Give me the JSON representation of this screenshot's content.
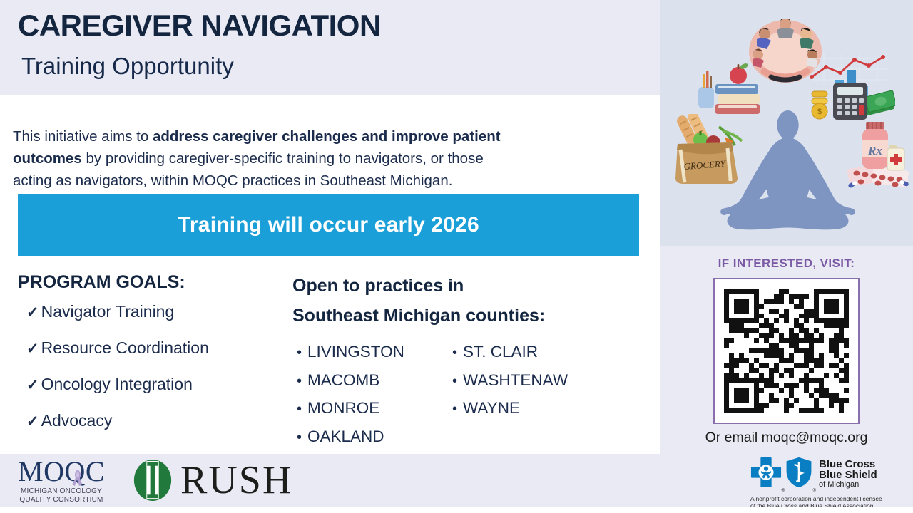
{
  "meta": {
    "background": "#e9eaf3",
    "panel_background": "#dbe2ee",
    "navy": "#14253f",
    "banner_blue": "#1a9fd8",
    "accent_purple": "#7b5ba6",
    "silhouette_blue": "#7e95c2",
    "white": "#ffffff"
  },
  "header": {
    "title": "CAREGIVER NAVIGATION",
    "subtitle": "Training Opportunity"
  },
  "intro": {
    "line1_pre": "This initiative aims to ",
    "line1_bold": "address caregiver challenges and improve patient",
    "line2_bold": "outcomes",
    "line2_post": " by providing caregiver-specific training to navigators, or those",
    "line3": "acting as navigators, within MOQC practices in Southeast Michigan."
  },
  "banner": {
    "text": "Training will occur early 2026"
  },
  "goals": {
    "heading": "PROGRAM GOALS:",
    "check": "✓",
    "items": [
      "Navigator Training",
      "Resource Coordination",
      "Oncology Integration",
      "Advocacy"
    ]
  },
  "counties": {
    "heading_line1": "Open to practices in",
    "heading_line2": "Southeast Michigan counties:",
    "bullet": "•",
    "column1": [
      "LIVINGSTON",
      "MACOMB",
      "MONROE",
      "OAKLAND"
    ],
    "column2": [
      "ST. CLAIR",
      "WASHTENAW",
      "WAYNE"
    ]
  },
  "illustration": {
    "grocery_label": "GROCERY",
    "rx_label": "Rx"
  },
  "contact": {
    "qr_heading": "IF INTERESTED, VISIT:",
    "email_line": "Or email moqc@moqc.org"
  },
  "logos": {
    "moqc": {
      "name": "MOQC",
      "line1": "MICHIGAN ONCOLOGY",
      "line2": "QUALITY CONSORTIUM"
    },
    "rush": {
      "name": "RUSH"
    },
    "bcbs": {
      "reg": "®",
      "line1": "Blue Cross",
      "line2": "Blue Shield",
      "line3": "of Michigan",
      "disclaimer1": "A nonprofit corporation and independent licensee",
      "disclaimer2": "of the Blue Cross and Blue Shield Association"
    }
  }
}
